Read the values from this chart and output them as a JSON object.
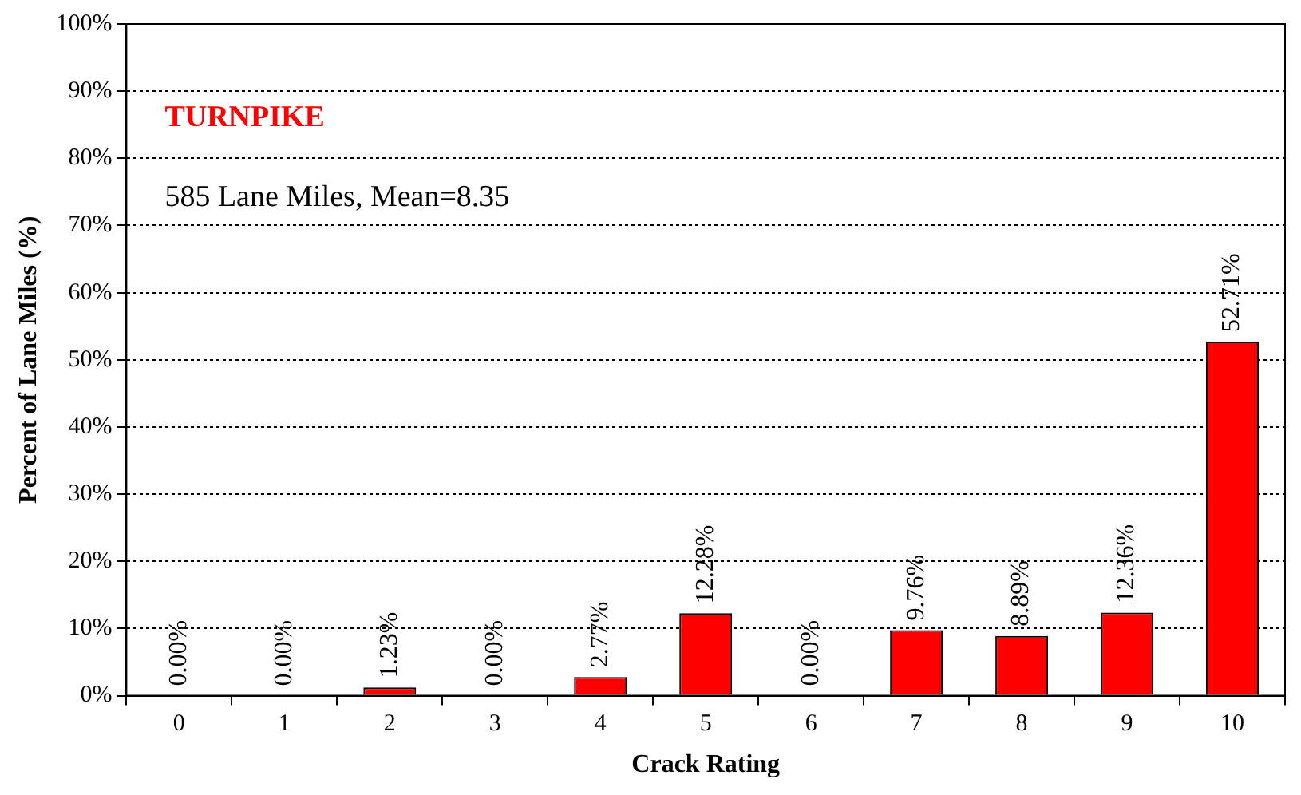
{
  "chart_data": {
    "type": "bar",
    "xlabel": "Crack Rating",
    "ylabel": "Percent of Lane Miles (%)",
    "annotations": [
      "TURNPIKE",
      "585 Lane Miles, Mean=8.35"
    ],
    "categories": [
      "0",
      "1",
      "2",
      "3",
      "4",
      "5",
      "6",
      "7",
      "8",
      "9",
      "10"
    ],
    "series": [
      {
        "color": "#ff0000",
        "values": [
          0.0,
          0.0,
          1.23,
          0.0,
          2.77,
          12.28,
          0.0,
          9.76,
          8.89,
          12.36,
          52.71
        ],
        "value_labels": [
          "0.00%",
          "0.00%",
          "1.23%",
          "0.00%",
          "2.77%",
          "12.28%",
          "0.00%",
          "9.76%",
          "8.89%",
          "12.36%",
          "52.71%"
        ]
      }
    ],
    "ylim": [
      0,
      100
    ],
    "yticks": [
      {
        "value": 0,
        "label": "0%"
      },
      {
        "value": 10,
        "label": "10%"
      },
      {
        "value": 20,
        "label": "20%"
      },
      {
        "value": 30,
        "label": "30%"
      },
      {
        "value": 40,
        "label": "40%"
      },
      {
        "value": 50,
        "label": "50%"
      },
      {
        "value": 60,
        "label": "60%"
      },
      {
        "value": 70,
        "label": "70%"
      },
      {
        "value": 80,
        "label": "80%"
      },
      {
        "value": 90,
        "label": "90%"
      },
      {
        "value": 100,
        "label": "100%"
      }
    ],
    "grid": "y",
    "legend": false
  }
}
